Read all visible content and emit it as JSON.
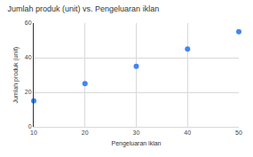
{
  "chart_data": {
    "type": "scatter",
    "title": "Jumlah produk (unit) vs. Pengeluaran iklan",
    "x_label": "Pengeluaran iklan",
    "y_label": "Jumlah produk (unit)",
    "x": [
      10,
      20,
      30,
      40,
      50
    ],
    "values": [
      15,
      25,
      35,
      45,
      55
    ],
    "color": "#4285f4",
    "xlim": [
      10,
      50
    ],
    "xticks": [
      10,
      20,
      30,
      40,
      50
    ],
    "ylim": [
      0,
      60
    ],
    "yticks": [
      0,
      20,
      40,
      60
    ],
    "grid": true
  }
}
